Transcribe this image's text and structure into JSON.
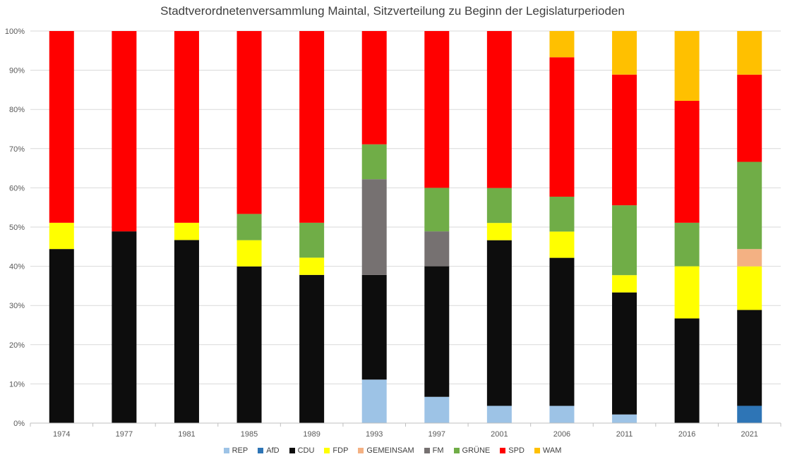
{
  "chart_data": {
    "type": "bar",
    "stacked": "percent",
    "title": "Stadtverordnetenversammlung Maintal, Sitzverteilung zu Beginn der Legislaturperioden",
    "categories": [
      "1974",
      "1977",
      "1981",
      "1985",
      "1989",
      "1993",
      "1997",
      "2001",
      "2006",
      "2011",
      "2016",
      "2021"
    ],
    "ylim": [
      0,
      100
    ],
    "yticks": [
      "0%",
      "10%",
      "20%",
      "30%",
      "40%",
      "50%",
      "60%",
      "70%",
      "80%",
      "90%",
      "100%"
    ],
    "grid": true,
    "legend_position": "bottom",
    "series": [
      {
        "name": "REP",
        "color": "#9DC3E6",
        "values": [
          0,
          0,
          0,
          0,
          0,
          11.1,
          6.7,
          4.4,
          4.4,
          2.2,
          0,
          0
        ]
      },
      {
        "name": "AfD",
        "color": "#2E75B6",
        "values": [
          0,
          0,
          0,
          0,
          0,
          0,
          0,
          0,
          0,
          0,
          0,
          4.4
        ]
      },
      {
        "name": "CDU",
        "color": "#0D0D0D",
        "values": [
          44.4,
          48.9,
          46.7,
          40.0,
          37.8,
          26.7,
          33.3,
          42.2,
          37.8,
          31.1,
          26.7,
          24.4
        ]
      },
      {
        "name": "FDP",
        "color": "#FFFF00",
        "values": [
          6.7,
          0,
          4.4,
          6.7,
          4.4,
          0,
          0,
          4.4,
          6.7,
          4.4,
          13.3,
          11.1
        ]
      },
      {
        "name": "GEMEINSAM",
        "color": "#F4B183",
        "values": [
          0,
          0,
          0,
          0,
          0,
          0,
          0,
          0,
          0,
          0,
          0,
          4.4
        ]
      },
      {
        "name": "FM",
        "color": "#767171",
        "values": [
          0,
          0,
          0,
          0,
          0,
          24.4,
          8.9,
          0,
          0,
          0,
          0,
          0
        ]
      },
      {
        "name": "GRÜNE",
        "color": "#70AD47",
        "values": [
          0,
          0,
          0,
          6.7,
          8.9,
          8.9,
          11.1,
          8.9,
          8.9,
          17.8,
          11.1,
          22.2
        ]
      },
      {
        "name": "SPD",
        "color": "#FF0000",
        "values": [
          48.9,
          51.1,
          48.9,
          46.7,
          48.9,
          28.9,
          40.0,
          40.0,
          35.6,
          33.3,
          31.1,
          22.2
        ]
      },
      {
        "name": "WAM",
        "color": "#FFC000",
        "values": [
          0,
          0,
          0,
          0,
          0,
          0,
          0,
          0,
          6.7,
          11.1,
          17.8,
          11.1
        ]
      }
    ]
  }
}
